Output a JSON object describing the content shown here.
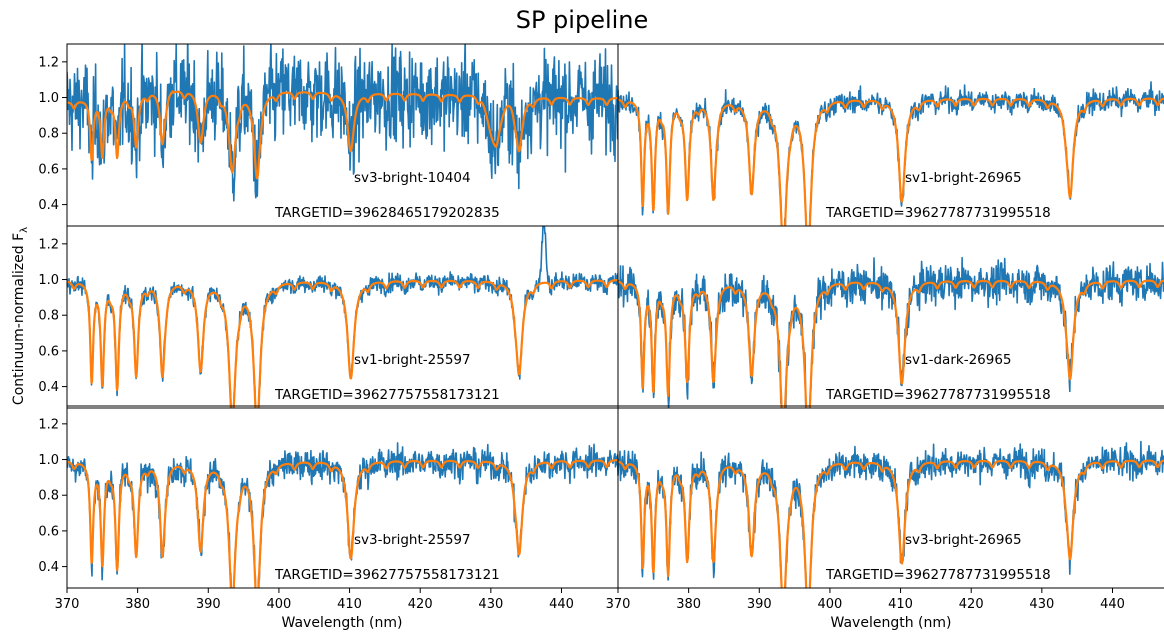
{
  "chart_data": {
    "type": "line",
    "title": "SP pipeline",
    "xlabel": "Wavelength (nm)",
    "ylabel": "Continuum-normalized F",
    "ylabel_subscript": "λ",
    "xlim": [
      370,
      448
    ],
    "ylim": [
      0.28,
      1.3
    ],
    "xticks": [
      "370",
      "380",
      "390",
      "400",
      "410",
      "420",
      "430",
      "440"
    ],
    "yticks": [
      "0.4",
      "0.6",
      "0.8",
      "1.0",
      "1.2"
    ],
    "grid": false,
    "colors": {
      "observed": "#1f77b4",
      "model": "#ff7f0e"
    },
    "absorption_lines_nm": [
      373.5,
      375.0,
      377.1,
      379.8,
      383.5,
      388.9,
      393.4,
      396.9,
      410.2,
      434.0
    ],
    "panels": [
      {
        "label": "sv3-bright-10404",
        "targetid": "TARGETID=39628465179202835",
        "noise": 0.22,
        "depth_scale": 0.55,
        "continuum_slope": "rising-then-flat",
        "dip_at_431": true
      },
      {
        "label": "sv1-bright-26965",
        "targetid": "TARGETID=39627787731995518",
        "noise": 0.05,
        "depth_scale": 1.0
      },
      {
        "label": "sv1-bright-25597",
        "targetid": "TARGETID=39627757558173121",
        "noise": 0.04,
        "depth_scale": 0.95,
        "emission_spike_nm": 437.5
      },
      {
        "label": "sv1-dark-26965",
        "targetid": "TARGETID=39627787731995518",
        "noise": 0.09,
        "depth_scale": 1.0
      },
      {
        "label": "sv3-bright-25597",
        "targetid": "TARGETID=39627757558173121",
        "noise": 0.07,
        "depth_scale": 0.95
      },
      {
        "label": "sv3-bright-26965",
        "targetid": "TARGETID=39627787731995518",
        "noise": 0.07,
        "depth_scale": 1.0
      }
    ]
  }
}
